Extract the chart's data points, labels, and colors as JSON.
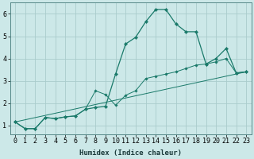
{
  "xlabel": "Humidex (Indice chaleur)",
  "background_color": "#cce8e8",
  "grid_color": "#aacccc",
  "line_color": "#1a7a6a",
  "xlim": [
    -0.5,
    23.5
  ],
  "ylim": [
    0.6,
    6.5
  ],
  "yticks": [
    1,
    2,
    3,
    4,
    5,
    6
  ],
  "xticks": [
    0,
    1,
    2,
    3,
    4,
    5,
    6,
    7,
    8,
    9,
    10,
    11,
    12,
    13,
    14,
    15,
    16,
    17,
    18,
    19,
    20,
    21,
    22,
    23
  ],
  "series1_x": [
    0,
    1,
    2,
    3,
    4,
    5,
    6,
    7,
    8,
    9,
    10,
    11,
    12,
    13,
    14,
    15,
    16,
    17,
    18,
    19,
    20,
    21,
    22,
    23
  ],
  "series1_y": [
    1.15,
    0.85,
    0.85,
    1.35,
    1.3,
    1.38,
    1.42,
    1.72,
    1.8,
    1.85,
    3.3,
    4.65,
    4.95,
    5.65,
    6.2,
    6.2,
    5.55,
    5.2,
    5.2,
    3.75,
    4.0,
    4.45,
    3.35,
    3.4
  ],
  "series2_x": [
    0,
    1,
    2,
    3,
    4,
    5,
    6,
    7,
    8,
    9,
    10,
    11,
    12,
    13,
    14,
    15,
    16,
    17,
    18,
    19,
    20,
    21,
    22,
    23
  ],
  "series2_y": [
    1.15,
    0.85,
    0.85,
    1.35,
    1.3,
    1.38,
    1.42,
    1.72,
    2.55,
    2.38,
    1.9,
    2.35,
    2.55,
    3.1,
    3.2,
    3.3,
    3.4,
    3.55,
    3.7,
    3.75,
    3.85,
    4.0,
    3.35,
    3.4
  ],
  "series3_x": [
    0,
    23
  ],
  "series3_y": [
    1.15,
    3.4
  ],
  "xlabel_fontsize": 6.5,
  "tick_fontsize": 6
}
